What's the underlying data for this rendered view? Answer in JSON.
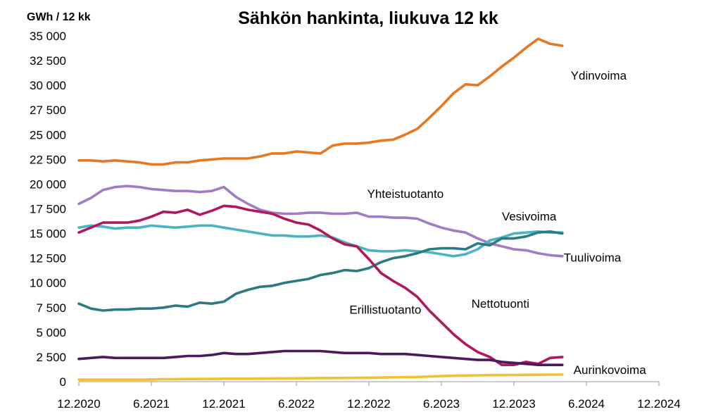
{
  "chart_data": {
    "type": "line",
    "title": "Sähkön hankinta, liukuva 12 kk",
    "ylabel": "GWh / 12 kk",
    "xlabel": "",
    "x_start": "12.2020",
    "x_end": "12.2024",
    "x_ticks": [
      "12.2020",
      "6.2021",
      "12.2021",
      "6.2022",
      "12.2022",
      "6.2023",
      "12.2023",
      "6.2024",
      "12.2024"
    ],
    "y_ticks": [
      "0",
      "2 500",
      "5 000",
      "7 500",
      "10 000",
      "12 500",
      "15 000",
      "17 500",
      "20 000",
      "22 500",
      "25 000",
      "27 500",
      "30 000",
      "32 500",
      "35 000"
    ],
    "ylim": [
      0,
      35000
    ],
    "grid": false,
    "legend": "none",
    "months": [
      "12.2020",
      "1.2021",
      "2.2021",
      "3.2021",
      "4.2021",
      "5.2021",
      "6.2021",
      "7.2021",
      "8.2021",
      "9.2021",
      "10.2021",
      "11.2021",
      "12.2021",
      "1.2022",
      "2.2022",
      "3.2022",
      "4.2022",
      "5.2022",
      "6.2022",
      "7.2022",
      "8.2022",
      "9.2022",
      "10.2022",
      "11.2022",
      "12.2022",
      "1.2023",
      "2.2023",
      "3.2023",
      "4.2023",
      "5.2023",
      "6.2023",
      "7.2023",
      "8.2023",
      "9.2023",
      "10.2023",
      "11.2023",
      "12.2023",
      "1.2024",
      "2.2024",
      "3.2024",
      "4.2024"
    ],
    "series": [
      {
        "name": "Ydinvoima",
        "color": "#E87722",
        "values": [
          22400,
          22400,
          22300,
          22400,
          22300,
          22200,
          22000,
          22000,
          22200,
          22200,
          22400,
          22500,
          22600,
          22600,
          22600,
          22800,
          23100,
          23100,
          23300,
          23200,
          23100,
          23900,
          24100,
          24100,
          24200,
          24400,
          24500,
          25000,
          25600,
          26700,
          27900,
          29200,
          30100,
          30000,
          30900,
          31900,
          32800,
          33800,
          34700,
          34200,
          34000
        ]
      },
      {
        "name": "Yhteistuotanto",
        "color": "#A07CC5",
        "values": [
          18000,
          18600,
          19400,
          19700,
          19800,
          19700,
          19500,
          19400,
          19300,
          19300,
          19200,
          19300,
          19700,
          18700,
          18000,
          17400,
          17100,
          17000,
          17000,
          17100,
          17100,
          17000,
          17000,
          17100,
          16700,
          16700,
          16600,
          16600,
          16500,
          16000,
          15600,
          15300,
          15100,
          14500,
          14000,
          13700,
          13400,
          13300,
          13000,
          12800,
          12700
        ]
      },
      {
        "name": "Vesivoima",
        "color": "#4BB3C2",
        "values": [
          15600,
          15800,
          15700,
          15500,
          15600,
          15600,
          15800,
          15700,
          15600,
          15700,
          15800,
          15800,
          15600,
          15400,
          15200,
          15000,
          14800,
          14800,
          14700,
          14700,
          14800,
          14600,
          14100,
          13700,
          13300,
          13200,
          13200,
          13300,
          13200,
          13100,
          12900,
          12700,
          12900,
          13400,
          14300,
          14600,
          15000,
          15100,
          15200,
          15100,
          15100
        ]
      },
      {
        "name": "Tuulivoima",
        "color": "#2C7A82",
        "values": [
          7900,
          7400,
          7200,
          7300,
          7300,
          7400,
          7400,
          7500,
          7700,
          7600,
          8000,
          7900,
          8100,
          8900,
          9300,
          9600,
          9700,
          10000,
          10200,
          10400,
          10800,
          11000,
          11300,
          11200,
          11500,
          12100,
          12500,
          12700,
          13000,
          13400,
          13500,
          13500,
          13400,
          14000,
          13800,
          14500,
          14500,
          14700,
          15100,
          15200,
          15000
        ]
      },
      {
        "name": "Nettotuonti",
        "color": "#B0175E",
        "values": [
          15100,
          15600,
          16100,
          16100,
          16100,
          16300,
          16700,
          17200,
          17100,
          17400,
          16900,
          17300,
          17800,
          17700,
          17400,
          17200,
          17000,
          16500,
          16100,
          15900,
          15300,
          14500,
          13900,
          13700,
          12400,
          11000,
          10200,
          9500,
          8600,
          7200,
          6000,
          4800,
          3800,
          3000,
          2500,
          1700,
          1700,
          2000,
          1800,
          2400,
          2500
        ]
      },
      {
        "name": "Erillistuotanto",
        "color": "#4B1A5E",
        "values": [
          2300,
          2400,
          2500,
          2400,
          2400,
          2400,
          2400,
          2400,
          2500,
          2600,
          2600,
          2700,
          2900,
          2800,
          2800,
          2900,
          3000,
          3100,
          3100,
          3100,
          3100,
          3000,
          2900,
          2900,
          2900,
          2800,
          2800,
          2800,
          2700,
          2600,
          2500,
          2400,
          2300,
          2200,
          2200,
          2000,
          1900,
          1800,
          1700,
          1700,
          1700
        ]
      },
      {
        "name": "Aurinkovoima",
        "color": "#F2C12E",
        "values": [
          200,
          200,
          200,
          200,
          200,
          200,
          220,
          250,
          260,
          270,
          270,
          280,
          300,
          300,
          300,
          310,
          320,
          330,
          340,
          350,
          360,
          370,
          380,
          390,
          400,
          420,
          440,
          460,
          480,
          520,
          560,
          600,
          620,
          640,
          660,
          670,
          680,
          690,
          700,
          710,
          720
        ]
      }
    ],
    "label_anchor": {
      "Ydinvoima": 40,
      "Yhteistuotanto": 27,
      "Vesivoima": 35,
      "Tuulivoima": 40,
      "Nettotuonti": 34,
      "Erillistuotanto": 26,
      "Aurinkovoima": 40
    }
  }
}
